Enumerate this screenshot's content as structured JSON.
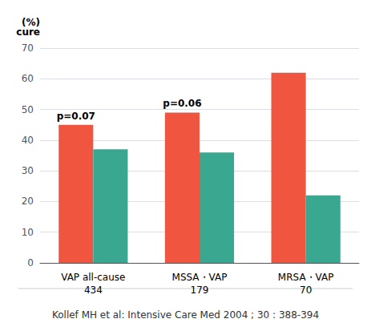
{
  "chart_data": {
    "type": "bar",
    "categories": [
      "VAP all-cause\n434",
      "MSSA・VAP\n179",
      "MRSA・VAP\n70"
    ],
    "series": [
      {
        "color": "#F05540",
        "values": [
          45,
          49,
          62
        ]
      },
      {
        "color": "#3aA890",
        "values": [
          37,
          36,
          22
        ]
      }
    ],
    "annotations": [
      {
        "text": "p=0.07",
        "category": "VAP all-cause\n434",
        "series": 0
      },
      {
        "text": "p=0.06",
        "category": "MSSA・VAP\n179",
        "series": 0
      }
    ],
    "ylabel": "(%)\ncure",
    "caption": "Kollef MH et al: Intensive Care Med 2004 ; 30 : 388-394",
    "ylim": [
      0,
      70
    ],
    "yticks": [
      0,
      10,
      20,
      30,
      40,
      50,
      60,
      70
    ],
    "grid": true
  }
}
